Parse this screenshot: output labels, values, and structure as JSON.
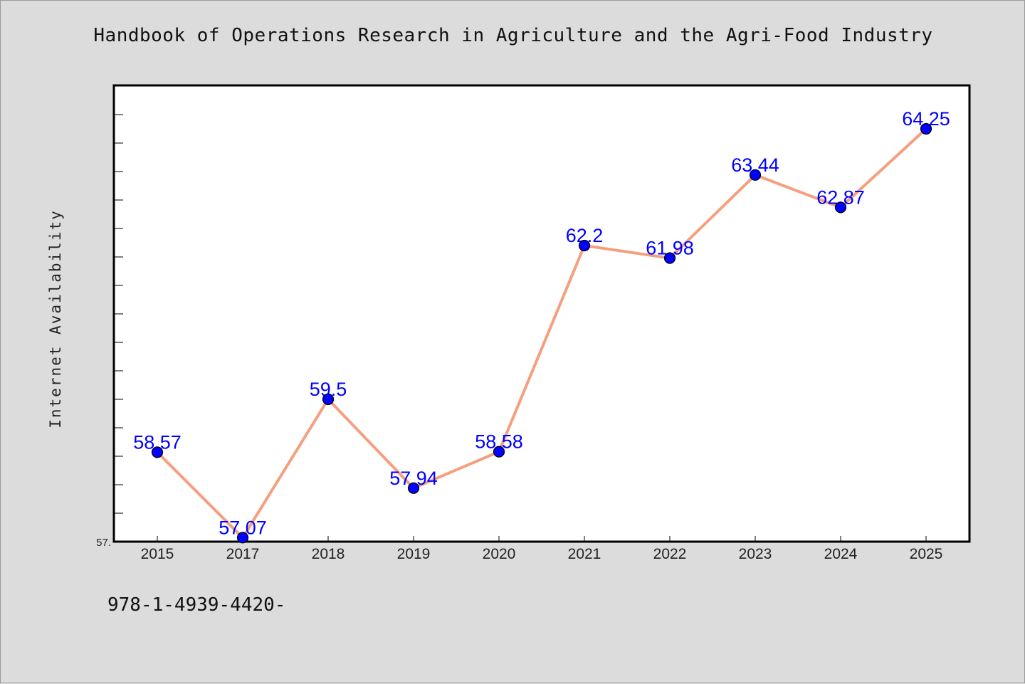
{
  "chart_data": {
    "type": "line",
    "title": "Handbook of Operations Research in Agriculture and the Agri-Food Industry",
    "xlabel": "",
    "ylabel": "Internet Availability",
    "categories": [
      "2015",
      "2017",
      "2018",
      "2019",
      "2020",
      "2021",
      "2022",
      "2023",
      "2024",
      "2025"
    ],
    "series": [
      {
        "values": [
          58.57,
          57.07,
          59.5,
          57.94,
          58.58,
          62.2,
          61.98,
          63.44,
          62.87,
          64.25
        ],
        "labels": [
          "58.57",
          "57.07",
          "59.5",
          "57.94",
          "58.58",
          "62.2",
          "61.98",
          "63.44",
          "62.87",
          "64.25"
        ]
      }
    ],
    "ylim": [
      57.0,
      65.0
    ],
    "y_tick_labels": [
      "57."
    ],
    "grid": false,
    "line_color": "#f4a07f",
    "marker_color": "#0000ff",
    "label_color": "#0000ff"
  },
  "footnote": "978-1-4939-4420-"
}
